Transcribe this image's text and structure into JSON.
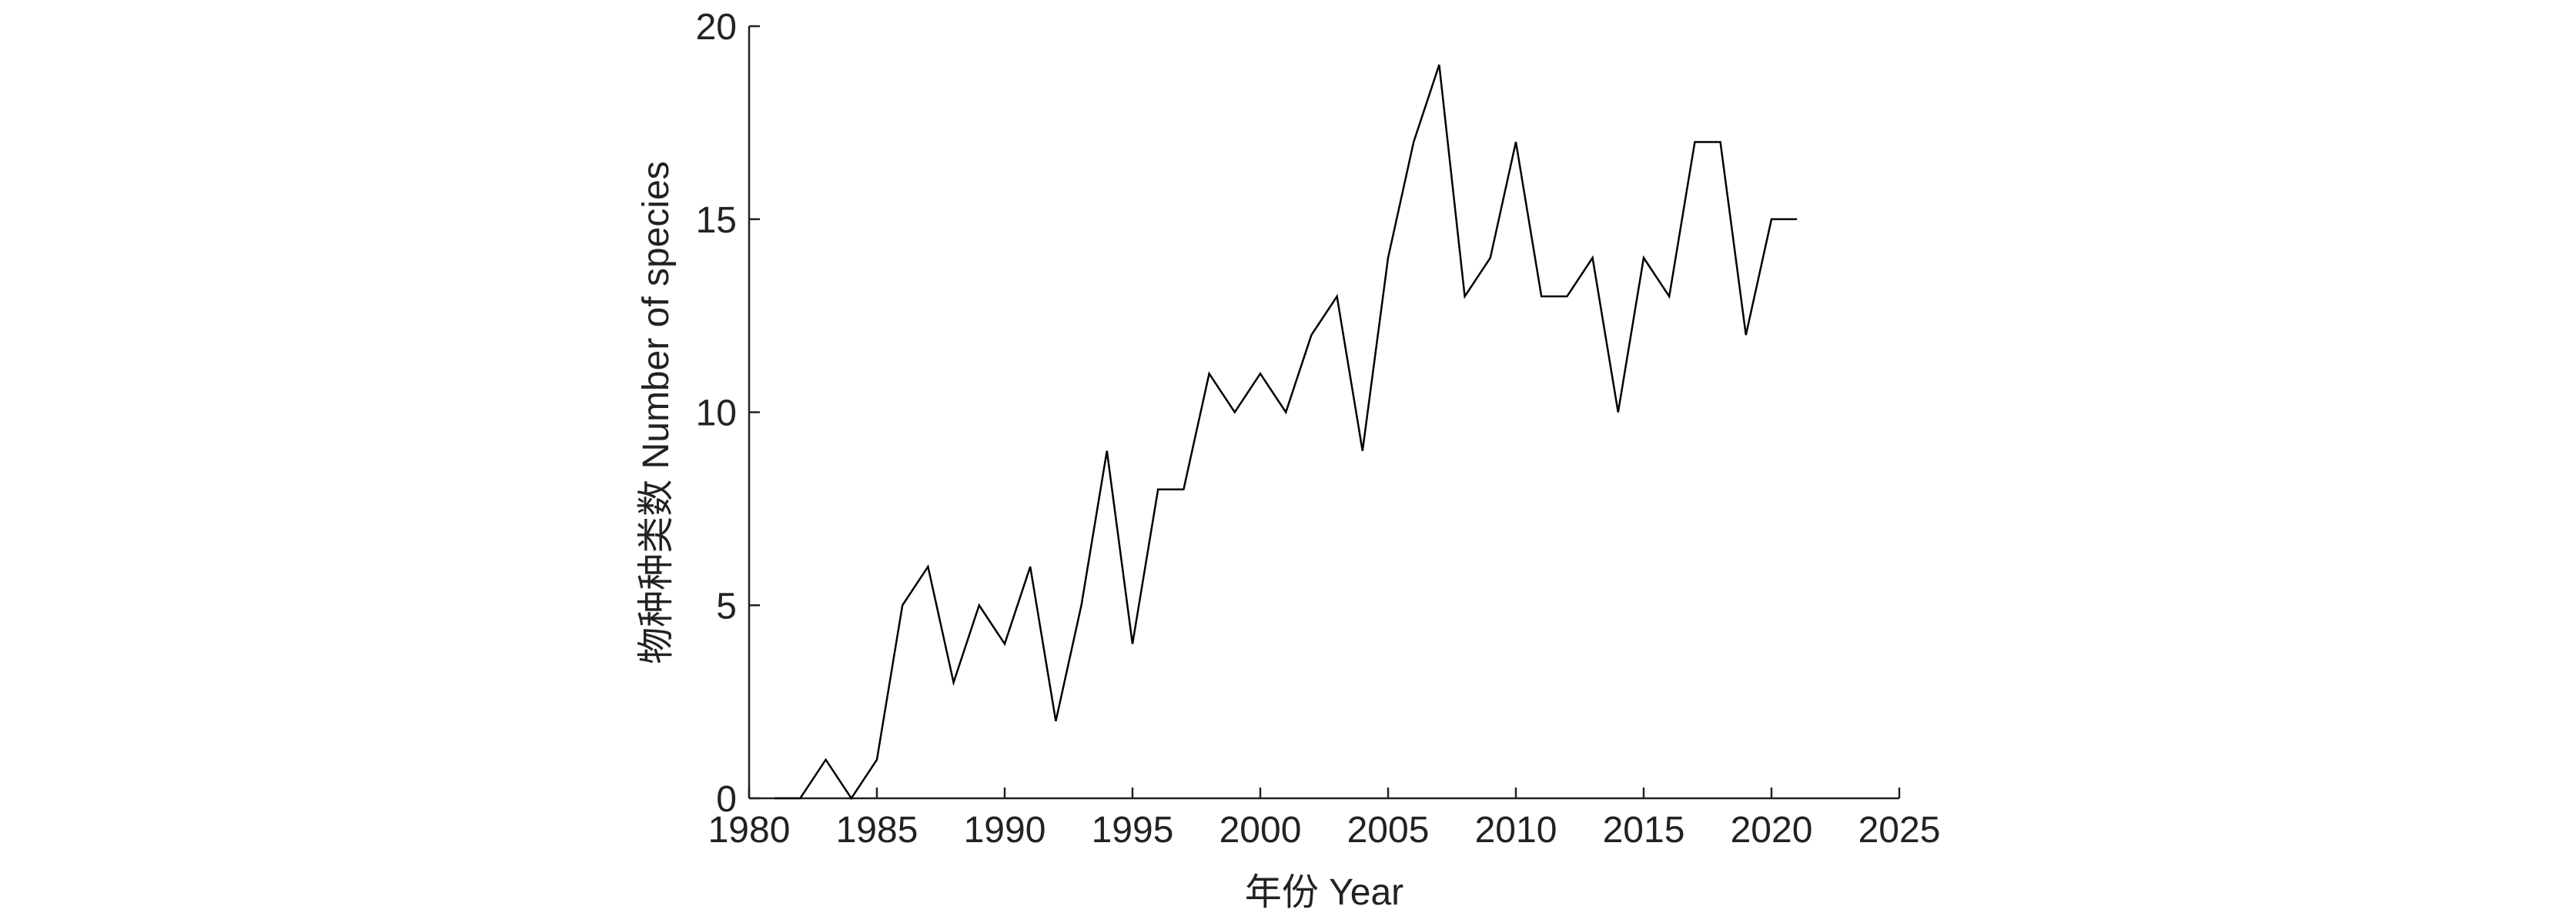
{
  "chart_data": {
    "type": "line",
    "xlabel": "年份 Year",
    "ylabel": "物种种类数 Number of species",
    "x": [
      1981,
      1982,
      1983,
      1984,
      1985,
      1986,
      1987,
      1988,
      1989,
      1990,
      1991,
      1992,
      1993,
      1994,
      1995,
      1996,
      1997,
      1998,
      1999,
      2000,
      2001,
      2002,
      2003,
      2004,
      2005,
      2006,
      2007,
      2008,
      2009,
      2010,
      2011,
      2012,
      2013,
      2014,
      2015,
      2016,
      2017,
      2018,
      2019,
      2020,
      2021
    ],
    "series": [
      {
        "color": "#000000",
        "values": [
          0,
          0,
          1,
          0,
          1,
          5,
          6,
          3,
          5,
          4,
          6,
          2,
          5,
          9,
          4,
          8,
          8,
          11,
          10,
          11,
          10,
          12,
          13,
          9,
          14,
          17,
          19,
          13,
          14,
          17,
          13,
          13,
          14,
          10,
          14,
          13,
          17,
          17,
          12,
          15,
          15
        ]
      }
    ],
    "xlim": [
      1980,
      2025
    ],
    "xticks": [
      1980,
      1985,
      1990,
      1995,
      2000,
      2005,
      2010,
      2015,
      2020,
      2025
    ],
    "ylim": [
      0,
      20
    ],
    "yticks": [
      0,
      5,
      10,
      15,
      20
    ],
    "grid": false
  }
}
